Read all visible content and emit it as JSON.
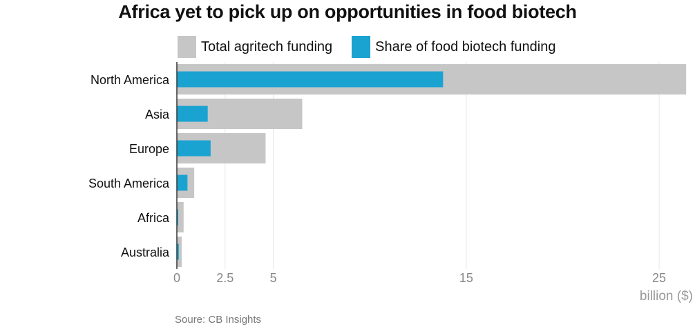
{
  "title": "Africa yet to pick up on opportunities in food biotech",
  "source": "Soure: CB Insights",
  "colors": {
    "total": "#c6c6c6",
    "food": "#1aa3d1",
    "grid": "#e6e6e6",
    "axis": "#333333"
  },
  "chart_data": {
    "type": "bar",
    "orientation": "horizontal",
    "categories": [
      "North America",
      "Asia",
      "Europe",
      "South America",
      "Africa",
      "Australia"
    ],
    "series": [
      {
        "name": "Total agritech funding",
        "values": [
          26.4,
          6.5,
          4.6,
          0.9,
          0.35,
          0.25
        ]
      },
      {
        "name": "Share of food biotech funding",
        "values": [
          13.8,
          1.6,
          1.75,
          0.55,
          0.05,
          0.1
        ]
      }
    ],
    "x_ticks": [
      0,
      2.5,
      5,
      15,
      25
    ],
    "x_tick_labels": [
      "0",
      "2.5",
      "5",
      "15",
      "25"
    ],
    "xlim": [
      0,
      26
    ],
    "xlabel": "billion ($)",
    "grid": true,
    "legend_position": "top"
  }
}
